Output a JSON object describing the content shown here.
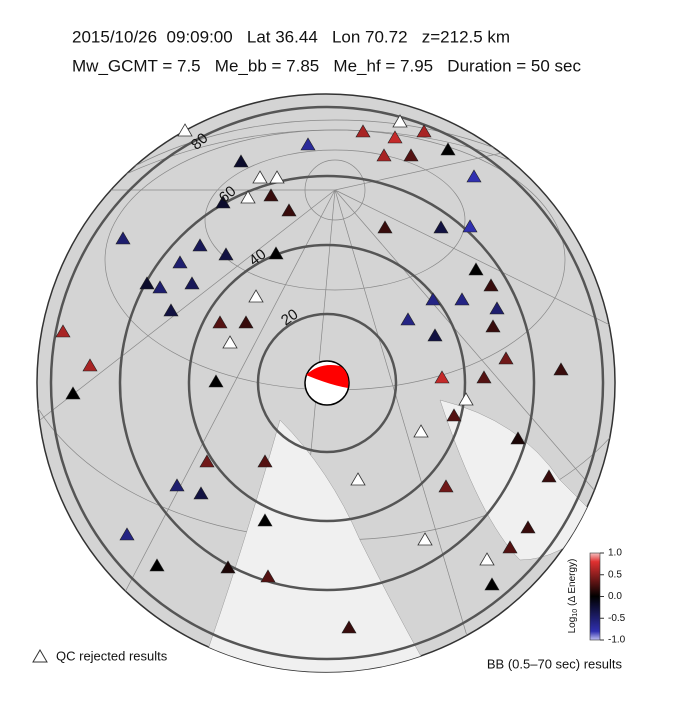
{
  "header": {
    "line1": "2015/10/26  09:09:00   Lat 36.44   Lon 70.72   z=212.5 km",
    "line2": "Mw_GCMT = 7.5   Me_bb = 7.85   Me_hf = 7.95   Duration = 50 sec"
  },
  "distance_rings": [
    {
      "value": 20,
      "label": "20"
    },
    {
      "value": 40,
      "label": "40"
    },
    {
      "value": 60,
      "label": "60"
    },
    {
      "value": 80,
      "label": "80"
    }
  ],
  "stations": [
    0.6,
    0.7,
    0.6,
    0.6,
    0.3,
    0,
    -0.7,
    -0.8,
    -0.2,
    -0.2,
    0.2,
    0.2,
    0.2,
    -0.3,
    -0.8,
    -0.5,
    -0.4,
    -0.3,
    0,
    -0.5,
    -0.2,
    -0.4,
    -0.5,
    -0.3,
    0,
    0.2,
    -0.6,
    -0.6,
    -0.5,
    -0.6,
    -0.3,
    0.2,
    0.3,
    0.2,
    0.6,
    0.6,
    0.4,
    0.2,
    0.7,
    0.3,
    0,
    0,
    0.3,
    0.4,
    0.3,
    -0.5,
    -0.3,
    0.4,
    0.2,
    0.1,
    0,
    0.2,
    -0.6,
    0.3,
    0,
    0.1,
    0.3,
    0,
    0.2
  ],
  "colorbar": {
    "label": {
      "base": "Log",
      "sub": "10",
      "rest": "(Δ Energy)"
    },
    "lim": [
      -1,
      1
    ],
    "ticks": [
      {
        "value": 1,
        "label": "1.0"
      },
      {
        "value": 0.5,
        "label": "0.5"
      },
      {
        "value": 0,
        "label": "0.0"
      },
      {
        "value": -0.5,
        "label": "-0.5"
      },
      {
        "value": -1,
        "label": "-1.0"
      }
    ]
  },
  "legend": {
    "rejected": "QC rejected results",
    "band": "BB (0.5–70 sec) results"
  }
}
